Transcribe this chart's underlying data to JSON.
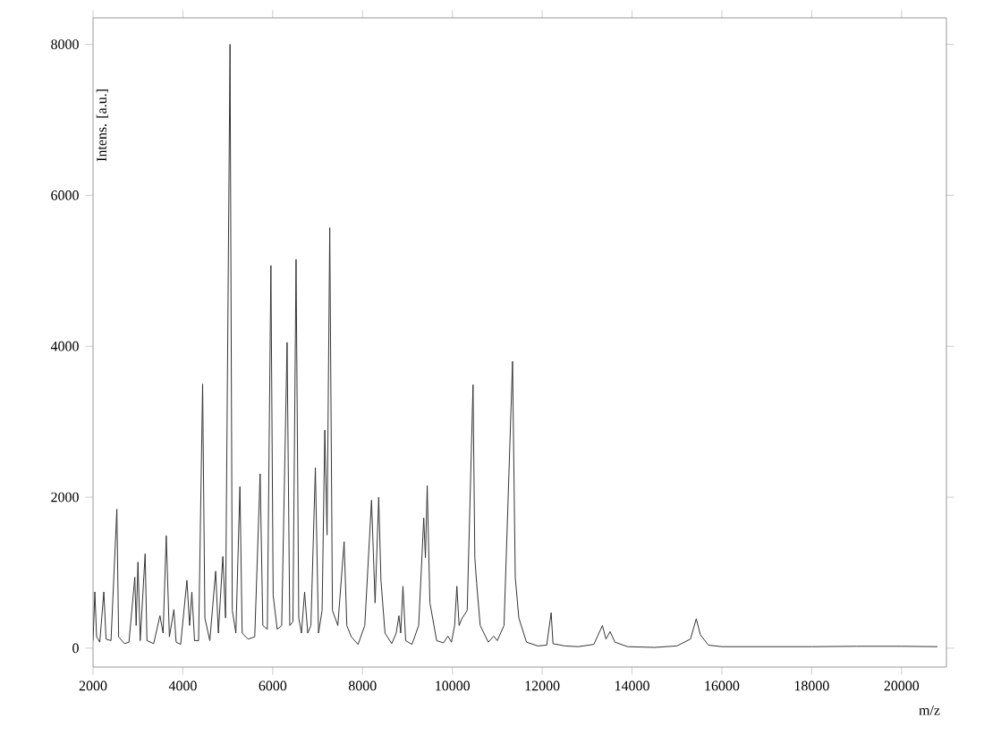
{
  "chart_data": {
    "type": "line",
    "xlabel": "m/z",
    "ylabel": "Intens. [a.u.]",
    "xlim": [
      2000,
      21000
    ],
    "ylim": [
      -250,
      8350
    ],
    "xticks": [
      2000,
      4000,
      6000,
      8000,
      10000,
      12000,
      14000,
      16000,
      18000,
      20000
    ],
    "yticks": [
      0,
      2000,
      4000,
      6000,
      8000
    ],
    "grid": false,
    "marker": "none",
    "line_style": "solid",
    "series": [
      {
        "color": "#333333",
        "x": [
          2000,
          2040,
          2080,
          2150,
          2240,
          2290,
          2400,
          2530,
          2570,
          2700,
          2800,
          2930,
          2960,
          3000,
          3050,
          3160,
          3200,
          3350,
          3490,
          3560,
          3630,
          3700,
          3800,
          3850,
          3950,
          4090,
          4150,
          4200,
          4260,
          4350,
          4440,
          4490,
          4600,
          4730,
          4790,
          4890,
          4950,
          5050,
          5100,
          5180,
          5270,
          5320,
          5450,
          5600,
          5720,
          5780,
          5880,
          5960,
          6010,
          6100,
          6200,
          6320,
          6380,
          6450,
          6520,
          6580,
          6640,
          6710,
          6780,
          6850,
          6950,
          7020,
          7100,
          7160,
          7210,
          7270,
          7330,
          7450,
          7590,
          7650,
          7750,
          7900,
          8050,
          8200,
          8280,
          8360,
          8410,
          8500,
          8650,
          8750,
          8810,
          8850,
          8900,
          8960,
          9100,
          9250,
          9363,
          9400,
          9440,
          9500,
          9650,
          9800,
          9900,
          9980,
          10050,
          10100,
          10150,
          10210,
          10330,
          10460,
          10500,
          10540,
          10620,
          10800,
          10920,
          11000,
          11150,
          11340,
          11400,
          11480,
          11650,
          11900,
          12100,
          12200,
          12240,
          12500,
          12800,
          13150,
          13340,
          13420,
          13510,
          13620,
          13900,
          14500,
          15000,
          15300,
          15430,
          15520,
          15700,
          16000,
          17000,
          18000,
          19000,
          20000,
          20800
        ],
        "values": [
          100,
          745,
          150,
          80,
          745,
          120,
          100,
          1840,
          150,
          60,
          80,
          940,
          300,
          1140,
          100,
          1250,
          100,
          60,
          430,
          200,
          1490,
          150,
          510,
          80,
          50,
          900,
          300,
          745,
          100,
          100,
          3500,
          400,
          100,
          1020,
          200,
          1215,
          400,
          8000,
          500,
          200,
          2140,
          200,
          120,
          150,
          2310,
          300,
          250,
          5070,
          700,
          250,
          300,
          4050,
          300,
          350,
          5150,
          400,
          200,
          745,
          200,
          300,
          2390,
          200,
          500,
          2890,
          1500,
          5570,
          500,
          300,
          1410,
          300,
          150,
          50,
          300,
          1960,
          600,
          2000,
          900,
          200,
          60,
          200,
          430,
          200,
          820,
          100,
          50,
          300,
          1725,
          1200,
          2155,
          600,
          100,
          70,
          160,
          80,
          300,
          820,
          300,
          390,
          500,
          3490,
          1200,
          860,
          300,
          80,
          160,
          100,
          300,
          3800,
          940,
          400,
          80,
          30,
          40,
          470,
          60,
          30,
          20,
          50,
          300,
          120,
          220,
          80,
          20,
          10,
          30,
          120,
          390,
          180,
          40,
          20,
          20,
          20,
          25,
          25,
          20
        ]
      }
    ]
  }
}
